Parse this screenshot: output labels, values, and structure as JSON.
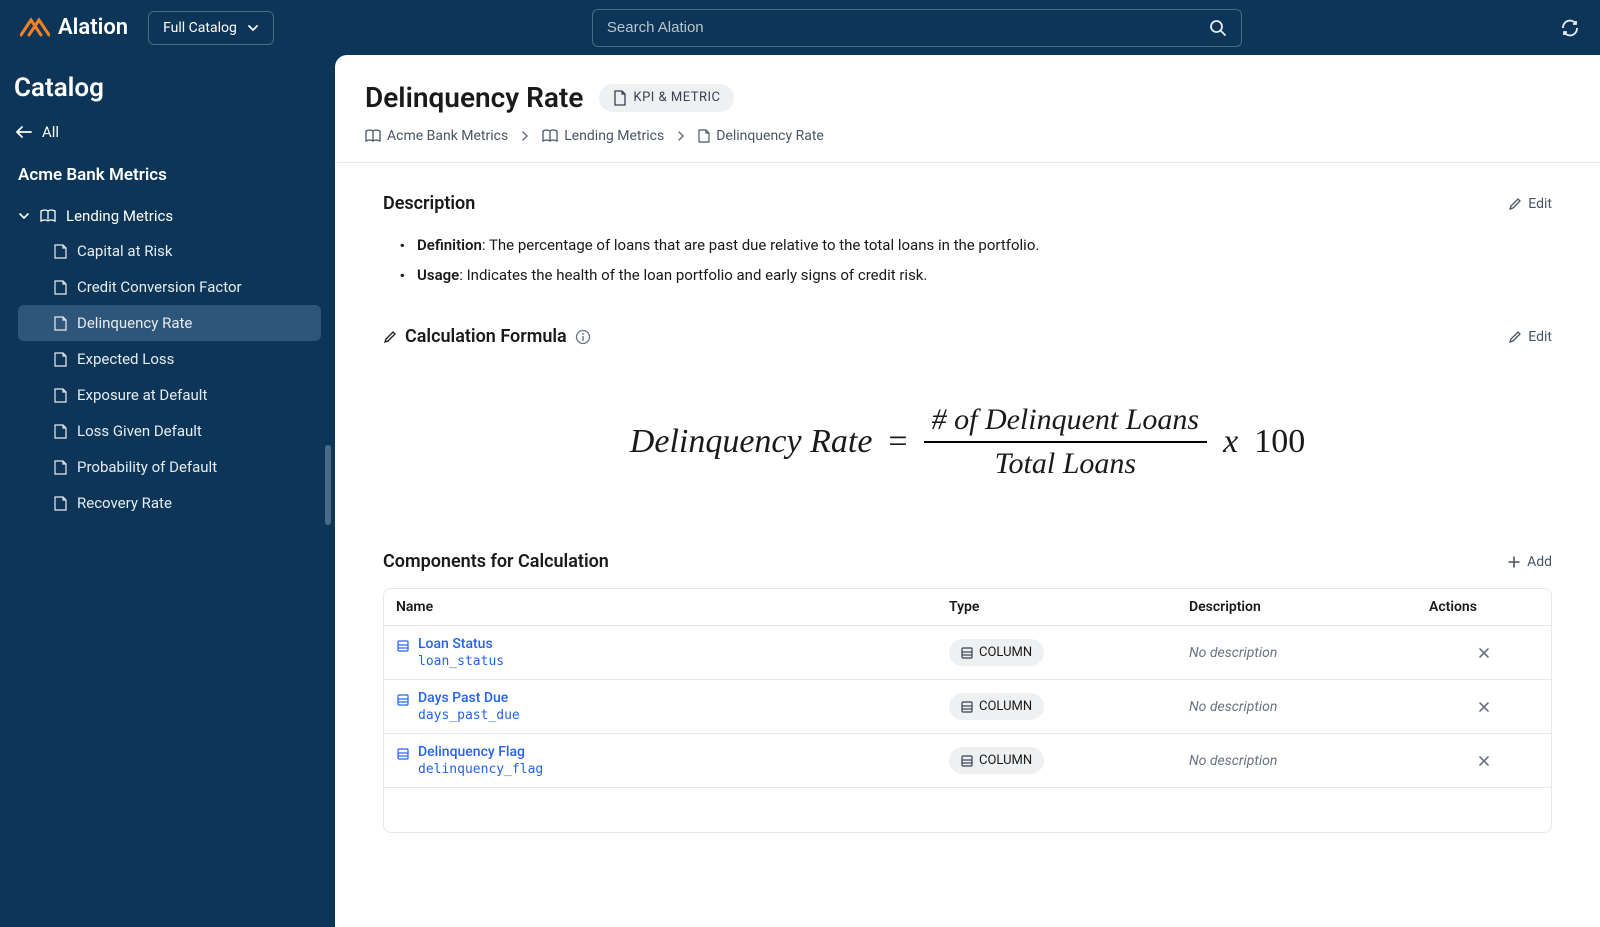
{
  "header": {
    "brand": "Alation",
    "catalog_dropdown_label": "Full Catalog",
    "search_placeholder": "Search Alation"
  },
  "sidebar": {
    "title": "Catalog",
    "all_label": "All",
    "section": "Acme Bank Metrics",
    "group_label": "Lending Metrics",
    "items": [
      {
        "label": "Capital at Risk",
        "active": false
      },
      {
        "label": "Credit Conversion Factor",
        "active": false
      },
      {
        "label": "Delinquency Rate",
        "active": true
      },
      {
        "label": "Expected Loss",
        "active": false
      },
      {
        "label": "Exposure at Default",
        "active": false
      },
      {
        "label": "Loss Given Default",
        "active": false
      },
      {
        "label": "Probability of Default",
        "active": false
      },
      {
        "label": "Recovery Rate",
        "active": false
      }
    ]
  },
  "page": {
    "title": "Delinquency Rate",
    "badge": "KPI & METRIC",
    "breadcrumbs": [
      "Acme Bank Metrics",
      "Lending Metrics",
      "Delinquency Rate"
    ]
  },
  "description": {
    "heading": "Description",
    "edit_label": "Edit",
    "items": [
      {
        "term": "Definition",
        "text": ": The percentage of loans that are past due relative to the total loans in the portfolio."
      },
      {
        "term": "Usage",
        "text": ": Indicates the health of the loan portfolio and early signs of credit risk."
      }
    ]
  },
  "formula": {
    "heading": "Calculation Formula",
    "edit_label": "Edit",
    "lhs": "Delinquency Rate",
    "eq": "=",
    "numerator": "# of Delinquent Loans",
    "denominator": "Total Loans",
    "times": "x",
    "constant": "100"
  },
  "components": {
    "heading": "Components for Calculation",
    "add_label": "Add",
    "columns": [
      "Name",
      "Type",
      "Description",
      "Actions"
    ],
    "type_label": "COLUMN",
    "no_description": "No description",
    "rows": [
      {
        "name": "Loan Status",
        "tech": "loan_status"
      },
      {
        "name": "Days Past Due",
        "tech": "days_past_due"
      },
      {
        "name": "Delinquency Flag",
        "tech": "delinquency_flag"
      }
    ]
  },
  "colors": {
    "header_bg": "#0c3557",
    "sidebar_active_bg": "#2d567a",
    "accent_orange": "#f58220",
    "link_blue": "#2563eb",
    "badge_bg": "#eef0f2",
    "border": "#e5e7eb"
  }
}
